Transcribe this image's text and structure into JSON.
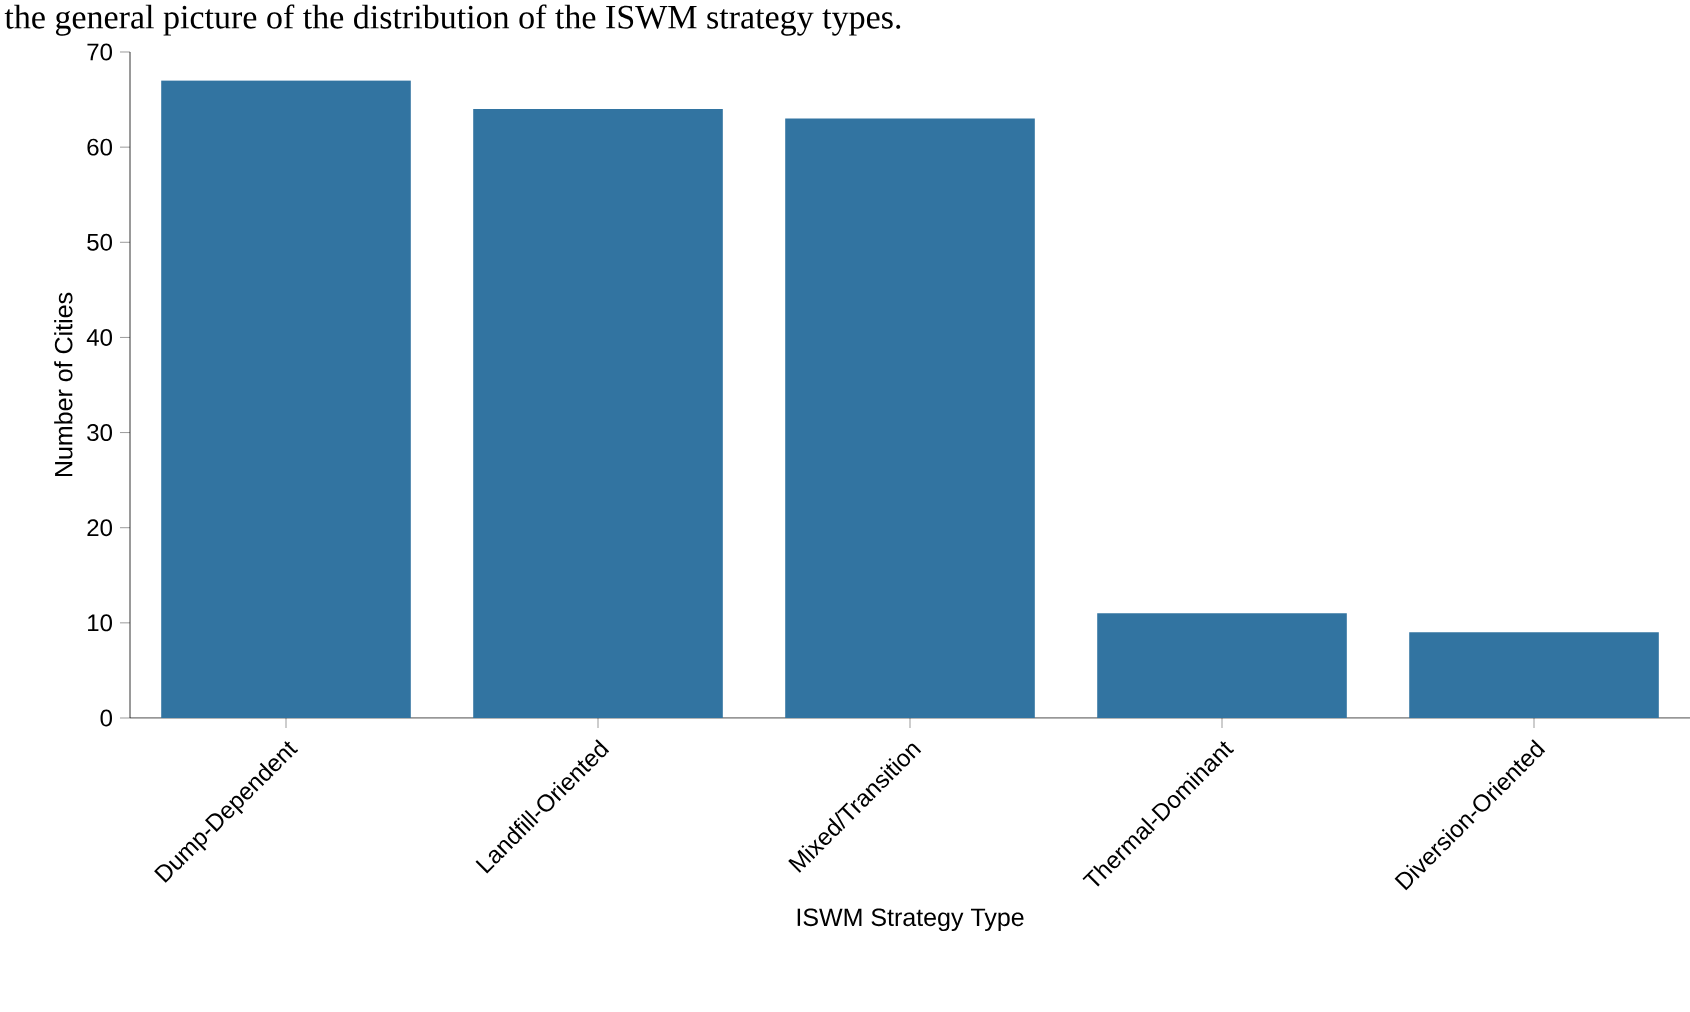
{
  "chart_data": {
    "type": "bar",
    "annotations": [
      "the general picture of the distribution of the ISWM strategy types."
    ],
    "categories": [
      "Dump-Dependent",
      "Landfill-Oriented",
      "Mixed/Transition",
      "Thermal-Dominant",
      "Diversion-Oriented"
    ],
    "values": [
      67,
      64,
      63,
      11,
      9
    ],
    "color": "#3274a1",
    "xlabel": "ISWM Strategy Type",
    "ylabel": "Number of Cities",
    "ylim": [
      0,
      70
    ],
    "yticks": [
      0,
      10,
      20,
      30,
      40,
      50,
      60,
      70
    ],
    "grid": false
  }
}
